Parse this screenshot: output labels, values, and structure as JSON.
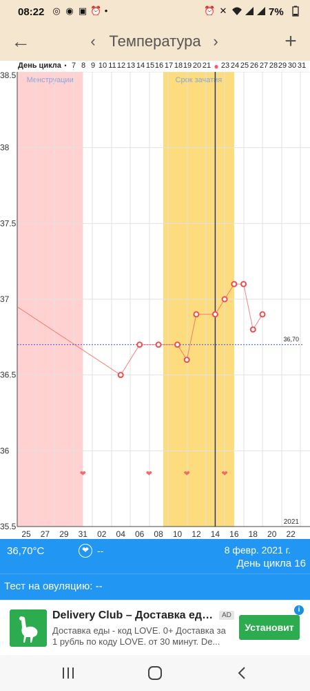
{
  "status_bar": {
    "time": "08:22",
    "icons": [
      "ring-icon",
      "whatsapp-icon",
      "image-icon",
      "alarm-icon",
      "dot-icon",
      "alarm-off-icon",
      "mute-icon",
      "wifi-icon",
      "signal-icon",
      "signal-icon-2"
    ],
    "battery": "7%"
  },
  "header": {
    "title": "Температура",
    "back_icon": "arrow-left-icon",
    "prev_icon": "chevron-left-icon",
    "next_icon": "chevron-right-icon",
    "add_icon": "plus-icon"
  },
  "cycle_row": {
    "label": "День цикла",
    "days": [
      "7",
      "8",
      "9",
      "10",
      "11",
      "12",
      "13",
      "14",
      "15",
      "16",
      "17",
      "18",
      "19",
      "20",
      "21",
      "23",
      "24",
      "25",
      "26",
      "27",
      "28",
      "29",
      "30",
      "31"
    ],
    "marker_color": "#ff4f7b"
  },
  "chart_data": {
    "type": "line",
    "ylim": [
      35.5,
      38.5
    ],
    "y_ticks": [
      "38.5",
      "38",
      "37.5",
      "37",
      "36.5",
      "36",
      "35.5"
    ],
    "x_ticks": [
      "25",
      "27",
      "29",
      "31",
      "02",
      "04",
      "06",
      "08",
      "10",
      "12",
      "14",
      "16",
      "18",
      "20",
      "22"
    ],
    "year_label": "2021",
    "cover_line": {
      "value": 36.7,
      "label": "36,70"
    },
    "zones": [
      {
        "label": "Менструации",
        "start_day": 24,
        "end_day": 31,
        "color": "#ffd1d1"
      },
      {
        "label": "Срок зачатия",
        "start_day": 40,
        "end_day": 47,
        "color": "#fcdc7c"
      }
    ],
    "current_day": 45,
    "series": [
      {
        "points": [
          {
            "day": 23,
            "value": 36.95,
            "marker": false
          },
          {
            "day": 35,
            "value": 36.5,
            "marker": true
          },
          {
            "day": 37,
            "value": 36.7,
            "marker": true
          },
          {
            "day": 39,
            "value": 36.7,
            "marker": true
          },
          {
            "day": 41,
            "value": 36.7,
            "marker": true
          },
          {
            "day": 42,
            "value": 36.6,
            "marker": true
          },
          {
            "day": 43,
            "value": 36.9,
            "marker": true
          },
          {
            "day": 45,
            "value": 36.9,
            "marker": true
          },
          {
            "day": 46,
            "value": 37.0,
            "marker": true
          },
          {
            "day": 47,
            "value": 37.1,
            "marker": true
          },
          {
            "day": 48,
            "value": 37.1,
            "marker": true
          },
          {
            "day": 49,
            "value": 36.8,
            "marker": true
          },
          {
            "day": 50,
            "value": 36.9,
            "marker": true
          }
        ],
        "color": "#f26b6b"
      }
    ],
    "hearts": [
      31,
      38,
      42,
      46
    ],
    "heart_color": "#f26b6b"
  },
  "info_bar": {
    "temperature": "36,70°C",
    "heart_value": "--",
    "date": "8 февр. 2021 г.",
    "cycle_day": "День цикла 16"
  },
  "ovulation": {
    "text": "Тест на овуляцию: --"
  },
  "ad": {
    "title": "Delivery Club – Доставка еды и продуктов",
    "badge": "AD",
    "text": "Доставка еды - код LOVE. 0+ Доставка за 1 рубль по коду LOVE. от 30 минут. De...",
    "install_label": "Установит",
    "logo_icon": "ostrich-icon",
    "accent": "#2cab4f"
  },
  "nav": {
    "recent_icon": "recent-apps-icon",
    "home_icon": "home-icon",
    "back_icon": "back-icon"
  }
}
